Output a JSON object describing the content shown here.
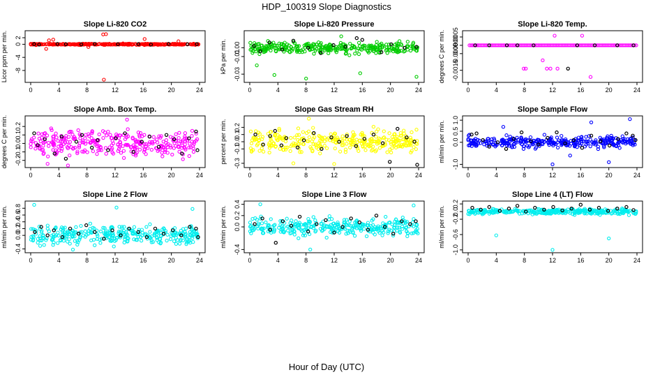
{
  "page": {
    "title": "HDP_100319  Slope Diagnostics",
    "xlabel": "Hour of Day (UTC)"
  },
  "chart_data": [
    {
      "type": "scatter",
      "title": "Slope Li-820 CO2",
      "ylabel": "Licor ppm per min.",
      "xlim": [
        0,
        24
      ],
      "ylim": [
        -11,
        3.5
      ],
      "xticks": [
        "0",
        "4",
        "8",
        "12",
        "16",
        "20",
        "24"
      ],
      "yticks": [
        {
          "value": -8,
          "label": "-8"
        },
        {
          "value": -4,
          "label": "-4"
        },
        {
          "value": 0,
          "label": "0"
        },
        {
          "value": 2,
          "label": "2"
        }
      ],
      "color": "#ff0000",
      "spread": 0.3,
      "outliers": [
        [
          2.2,
          -1.4
        ],
        [
          2.6,
          1.2
        ],
        [
          3.2,
          1.4
        ],
        [
          10.3,
          3.0
        ],
        [
          10.7,
          3.1
        ],
        [
          10.4,
          -10.8
        ],
        [
          16.2,
          1.6
        ],
        [
          8.2,
          -0.8
        ],
        [
          21.0,
          0.9
        ]
      ],
      "black_points": [
        [
          0.5,
          0.05
        ],
        [
          1.2,
          -0.1
        ],
        [
          3.8,
          0.1
        ],
        [
          5.0,
          0.0
        ],
        [
          7.2,
          -0.05
        ],
        [
          9.1,
          0.1
        ],
        [
          12.4,
          0.0
        ],
        [
          15.3,
          0.05
        ],
        [
          17.1,
          -0.1
        ],
        [
          19.6,
          0.1
        ],
        [
          22.3,
          0.0
        ],
        [
          23.6,
          0.05
        ]
      ]
    },
    {
      "type": "scatter",
      "title": "Slope Li-820 Pressure",
      "ylabel": "kPa per min.",
      "xlim": [
        0,
        24
      ],
      "ylim": [
        -0.037,
        0.017
      ],
      "xticks": [
        "0",
        "4",
        "8",
        "12",
        "16",
        "20",
        "24"
      ],
      "yticks": [
        {
          "value": -0.03,
          "label": "-0.03"
        },
        {
          "value": -0.01,
          "label": "-0.01"
        },
        {
          "value": 0.0,
          "label": "0.00"
        }
      ],
      "color": "#00cc00",
      "spread": 0.009,
      "outliers": [
        [
          3.5,
          -0.031
        ],
        [
          8.0,
          -0.035
        ],
        [
          15.7,
          -0.029
        ],
        [
          23.7,
          -0.033
        ],
        [
          1.0,
          -0.02
        ],
        [
          13.0,
          0.013
        ]
      ],
      "black_points": [
        [
          0.6,
          0.002
        ],
        [
          1.5,
          -0.004
        ],
        [
          2.8,
          0.006
        ],
        [
          4.6,
          -0.002
        ],
        [
          6.2,
          0.008
        ],
        [
          8.3,
          0.0
        ],
        [
          10.1,
          -0.006
        ],
        [
          11.9,
          0.003
        ],
        [
          13.6,
          0.001
        ],
        [
          15.2,
          0.011
        ],
        [
          16.0,
          0.009
        ],
        [
          18.7,
          -0.005
        ],
        [
          20.1,
          0.004
        ],
        [
          22.0,
          0.0
        ],
        [
          23.7,
          0.001
        ]
      ]
    },
    {
      "type": "scatter",
      "title": "Slope Li-820 Temp.",
      "ylabel": "degrees C per min.",
      "xlim": [
        0,
        24
      ],
      "ylim": [
        -0.0021,
        0.00075
      ],
      "xticks": [
        "0",
        "4",
        "8",
        "12",
        "16",
        "20",
        "24"
      ],
      "yticks": [
        {
          "value": -0.0015,
          "label": "-0.0015"
        },
        {
          "value": -0.0005,
          "label": "-0.0005"
        },
        {
          "value": 0.0,
          "label": "0.0000"
        },
        {
          "value": 0.0005,
          "label": "0.0005"
        }
      ],
      "color": "#ff00ff",
      "spread": 0.0,
      "outliers": [
        [
          7.9,
          -0.0014
        ],
        [
          8.2,
          -0.0014
        ],
        [
          11.2,
          -0.0014
        ],
        [
          11.7,
          -0.0014
        ],
        [
          10.6,
          -0.0009
        ],
        [
          12.3,
          0.00058
        ],
        [
          16.2,
          0.00058
        ],
        [
          17.4,
          -0.0019
        ],
        [
          12.7,
          -0.0014
        ]
      ],
      "black_points": [
        [
          1.0,
          0.0
        ],
        [
          3.0,
          0.0
        ],
        [
          5.5,
          0.0
        ],
        [
          7.0,
          0.0
        ],
        [
          9.3,
          0.0
        ],
        [
          14.2,
          -0.0014
        ],
        [
          15.5,
          0.0
        ],
        [
          18.0,
          0.0
        ],
        [
          21.2,
          0.0
        ],
        [
          23.5,
          0.0
        ]
      ]
    },
    {
      "type": "scatter",
      "title": "Slope Amb. Box Temp.",
      "ylabel": "degrees C per min.",
      "xlim": [
        0,
        24
      ],
      "ylim": [
        -0.26,
        0.3
      ],
      "xticks": [
        "0",
        "4",
        "8",
        "12",
        "16",
        "20",
        "24"
      ],
      "yticks": [
        {
          "value": -0.2,
          "label": "-0.2"
        },
        {
          "value": -0.1,
          "label": "-0.1"
        },
        {
          "value": 0.0,
          "label": "0.0"
        },
        {
          "value": 0.1,
          "label": "0.1"
        },
        {
          "value": 0.2,
          "label": "0.2"
        }
      ],
      "color": "#ff00ff",
      "spread": 0.2,
      "outliers": [
        [
          2.4,
          -0.24
        ],
        [
          5.3,
          -0.26
        ],
        [
          13.7,
          0.28
        ]
      ],
      "black_points": [
        [
          0.5,
          0.12
        ],
        [
          1.0,
          -0.02
        ],
        [
          2.0,
          0.05
        ],
        [
          3.4,
          -0.12
        ],
        [
          4.4,
          0.08
        ],
        [
          5.0,
          -0.18
        ],
        [
          6.5,
          0.02
        ],
        [
          7.3,
          0.1
        ],
        [
          8.7,
          -0.05
        ],
        [
          9.5,
          0.04
        ],
        [
          11.0,
          -0.08
        ],
        [
          12.1,
          0.06
        ],
        [
          13.4,
          0.12
        ],
        [
          14.6,
          -0.1
        ],
        [
          15.8,
          0.02
        ],
        [
          16.9,
          0.08
        ],
        [
          18.2,
          -0.04
        ],
        [
          19.3,
          0.1
        ],
        [
          20.4,
          0.05
        ],
        [
          21.5,
          -0.12
        ],
        [
          22.5,
          0.06
        ],
        [
          23.5,
          0.14
        ],
        [
          23.7,
          -0.08
        ]
      ]
    },
    {
      "type": "scatter",
      "title": "Slope Gas Stream RH",
      "ylabel": "percent per min.",
      "xlim": [
        0,
        24
      ],
      "ylim": [
        -0.33,
        0.33
      ],
      "xticks": [
        "0",
        "4",
        "8",
        "12",
        "16",
        "20",
        "24"
      ],
      "yticks": [
        {
          "value": -0.3,
          "label": "-0.3"
        },
        {
          "value": -0.1,
          "label": "-0.1"
        },
        {
          "value": 0.0,
          "label": "0.0"
        },
        {
          "value": 0.1,
          "label": "0.1"
        },
        {
          "value": 0.2,
          "label": "0.2"
        }
      ],
      "color": "#ffff00",
      "spread": 0.22,
      "outliers": [
        [
          6.2,
          -0.3
        ],
        [
          8.4,
          0.32
        ],
        [
          12.0,
          -0.31
        ]
      ],
      "black_points": [
        [
          0.8,
          0.1
        ],
        [
          1.9,
          -0.04
        ],
        [
          2.9,
          0.08
        ],
        [
          3.6,
          0.15
        ],
        [
          4.5,
          -0.05
        ],
        [
          5.2,
          0.05
        ],
        [
          6.8,
          -0.08
        ],
        [
          7.7,
          0.02
        ],
        [
          9.1,
          0.12
        ],
        [
          10.2,
          -0.1
        ],
        [
          11.6,
          0.06
        ],
        [
          12.7,
          0.0
        ],
        [
          13.8,
          0.08
        ],
        [
          15.1,
          -0.06
        ],
        [
          16.3,
          0.04
        ],
        [
          17.6,
          0.1
        ],
        [
          18.9,
          -0.02
        ],
        [
          19.9,
          -0.28
        ],
        [
          21.0,
          0.18
        ],
        [
          22.3,
          0.06
        ],
        [
          23.4,
          0.0
        ],
        [
          23.8,
          -0.32
        ]
      ]
    },
    {
      "type": "scatter",
      "title": "Slope Sample Flow",
      "ylabel": "ml/min per min.",
      "xlim": [
        0,
        24
      ],
      "ylim": [
        -1.05,
        1.1
      ],
      "xticks": [
        "0",
        "4",
        "8",
        "12",
        "16",
        "20",
        "24"
      ],
      "yticks": [
        {
          "value": -1.0,
          "label": "-1.0"
        },
        {
          "value": 0.0,
          "label": "0.0"
        },
        {
          "value": 0.5,
          "label": "0.5"
        },
        {
          "value": 1.0,
          "label": "1.0"
        }
      ],
      "color": "#0000ff",
      "spread": 0.38,
      "outliers": [
        [
          12.0,
          -1.0
        ],
        [
          17.5,
          0.9
        ],
        [
          20.0,
          -0.9
        ],
        [
          23.0,
          1.05
        ],
        [
          5.0,
          0.7
        ],
        [
          14.5,
          -0.6
        ]
      ],
      "black_points": [
        [
          0.5,
          0.35
        ],
        [
          1.2,
          0.4
        ],
        [
          2.1,
          0.1
        ],
        [
          3.0,
          -0.2
        ],
        [
          4.2,
          0.0
        ],
        [
          5.4,
          -0.3
        ],
        [
          6.5,
          0.15
        ],
        [
          7.6,
          0.45
        ],
        [
          8.9,
          0.05
        ],
        [
          10.0,
          -0.1
        ],
        [
          11.3,
          0.2
        ],
        [
          12.6,
          0.45
        ],
        [
          13.8,
          -0.05
        ],
        [
          15.0,
          0.1
        ],
        [
          16.2,
          -0.25
        ],
        [
          17.5,
          0.3
        ],
        [
          18.8,
          0.05
        ],
        [
          20.1,
          -0.15
        ],
        [
          21.3,
          0.15
        ],
        [
          22.5,
          0.4
        ],
        [
          23.4,
          0.3
        ],
        [
          23.8,
          0.1
        ]
      ]
    },
    {
      "type": "scatter",
      "title": "Slope Line 2 Flow",
      "ylabel": "ml/min per min.",
      "xlim": [
        0,
        24
      ],
      "ylim": [
        -0.45,
        0.95
      ],
      "xticks": [
        "0",
        "4",
        "8",
        "12",
        "16",
        "20",
        "24"
      ],
      "yticks": [
        {
          "value": -0.4,
          "label": "-0.4"
        },
        {
          "value": 0.0,
          "label": "0.0"
        },
        {
          "value": 0.2,
          "label": "0.2"
        },
        {
          "value": 0.4,
          "label": "0.4"
        },
        {
          "value": 0.6,
          "label": "0.6"
        },
        {
          "value": 0.8,
          "label": "0.8"
        }
      ],
      "color": "#00eeee",
      "spread": 0.38,
      "outliers": [
        [
          0.5,
          0.9
        ],
        [
          6.0,
          -0.42
        ],
        [
          12.2,
          0.82
        ],
        [
          23.0,
          0.78
        ]
      ],
      "black_points": [
        [
          0.6,
          0.1
        ],
        [
          1.5,
          0.25
        ],
        [
          2.4,
          0.0
        ],
        [
          3.3,
          0.15
        ],
        [
          4.5,
          -0.05
        ],
        [
          5.6,
          0.2
        ],
        [
          6.8,
          0.05
        ],
        [
          7.9,
          0.3
        ],
        [
          9.1,
          0.1
        ],
        [
          10.4,
          -0.1
        ],
        [
          11.6,
          0.15
        ],
        [
          12.8,
          0.0
        ],
        [
          14.0,
          0.2
        ],
        [
          15.3,
          0.1
        ],
        [
          16.5,
          -0.05
        ],
        [
          17.7,
          0.2
        ],
        [
          18.9,
          0.05
        ],
        [
          20.2,
          0.15
        ],
        [
          21.4,
          0.0
        ],
        [
          22.6,
          0.25
        ],
        [
          23.5,
          0.2
        ],
        [
          23.8,
          -0.05
        ]
      ]
    },
    {
      "type": "scatter",
      "title": "Slope Line 3 Flow",
      "ylabel": "ml/min per min.",
      "xlim": [
        0,
        24
      ],
      "ylim": [
        -0.42,
        0.42
      ],
      "xticks": [
        "0",
        "4",
        "8",
        "12",
        "16",
        "20",
        "24"
      ],
      "yticks": [
        {
          "value": -0.4,
          "label": "-0.4"
        },
        {
          "value": 0.0,
          "label": "0.0"
        },
        {
          "value": 0.2,
          "label": "0.2"
        },
        {
          "value": 0.4,
          "label": "0.4"
        }
      ],
      "color": "#00eeee",
      "spread": 0.22,
      "outliers": [
        [
          1.5,
          0.4
        ],
        [
          8.6,
          -0.4
        ],
        [
          23.3,
          0.38
        ]
      ],
      "black_points": [
        [
          0.7,
          0.05
        ],
        [
          1.8,
          0.15
        ],
        [
          2.9,
          -0.05
        ],
        [
          3.7,
          -0.28
        ],
        [
          4.7,
          0.1
        ],
        [
          5.9,
          0.02
        ],
        [
          7.1,
          0.18
        ],
        [
          8.3,
          -0.08
        ],
        [
          9.5,
          0.05
        ],
        [
          10.8,
          0.12
        ],
        [
          12.0,
          -0.1
        ],
        [
          13.2,
          0.0
        ],
        [
          14.4,
          0.15
        ],
        [
          15.6,
          0.08
        ],
        [
          16.8,
          -0.05
        ],
        [
          18.0,
          0.2
        ],
        [
          19.2,
          0.0
        ],
        [
          20.4,
          -0.12
        ],
        [
          21.6,
          0.1
        ],
        [
          22.8,
          0.05
        ],
        [
          23.6,
          0.1
        ]
      ]
    },
    {
      "type": "scatter",
      "title": "Slope Line 4 (LT) Flow",
      "ylabel": "ml/min per min.",
      "xlim": [
        0,
        24
      ],
      "ylim": [
        -1.02,
        0.22
      ],
      "xticks": [
        "0",
        "4",
        "8",
        "12",
        "16",
        "20",
        "24"
      ],
      "yticks": [
        {
          "value": -1.0,
          "label": "-1.0"
        },
        {
          "value": -0.6,
          "label": "-0.6"
        },
        {
          "value": -0.2,
          "label": "-0.2"
        },
        {
          "value": 0.0,
          "label": "0.0"
        },
        {
          "value": 0.2,
          "label": "0.2"
        }
      ],
      "color": "#00eeee",
      "spread": 0.1,
      "outliers": [
        [
          4.0,
          -0.62
        ],
        [
          12.0,
          -1.0
        ],
        [
          20.0,
          -0.7
        ]
      ],
      "black_points": [
        [
          0.6,
          0.1
        ],
        [
          1.8,
          0.05
        ],
        [
          3.0,
          0.12
        ],
        [
          4.5,
          0.02
        ],
        [
          5.8,
          0.08
        ],
        [
          7.0,
          0.15
        ],
        [
          8.2,
          0.0
        ],
        [
          9.5,
          0.1
        ],
        [
          10.8,
          0.05
        ],
        [
          12.1,
          0.12
        ],
        [
          13.4,
          0.03
        ],
        [
          14.7,
          0.08
        ],
        [
          16.0,
          0.18
        ],
        [
          17.3,
          0.05
        ],
        [
          18.6,
          0.1
        ],
        [
          19.9,
          0.02
        ],
        [
          21.2,
          0.08
        ],
        [
          22.5,
          0.12
        ],
        [
          23.5,
          0.04
        ]
      ]
    }
  ]
}
